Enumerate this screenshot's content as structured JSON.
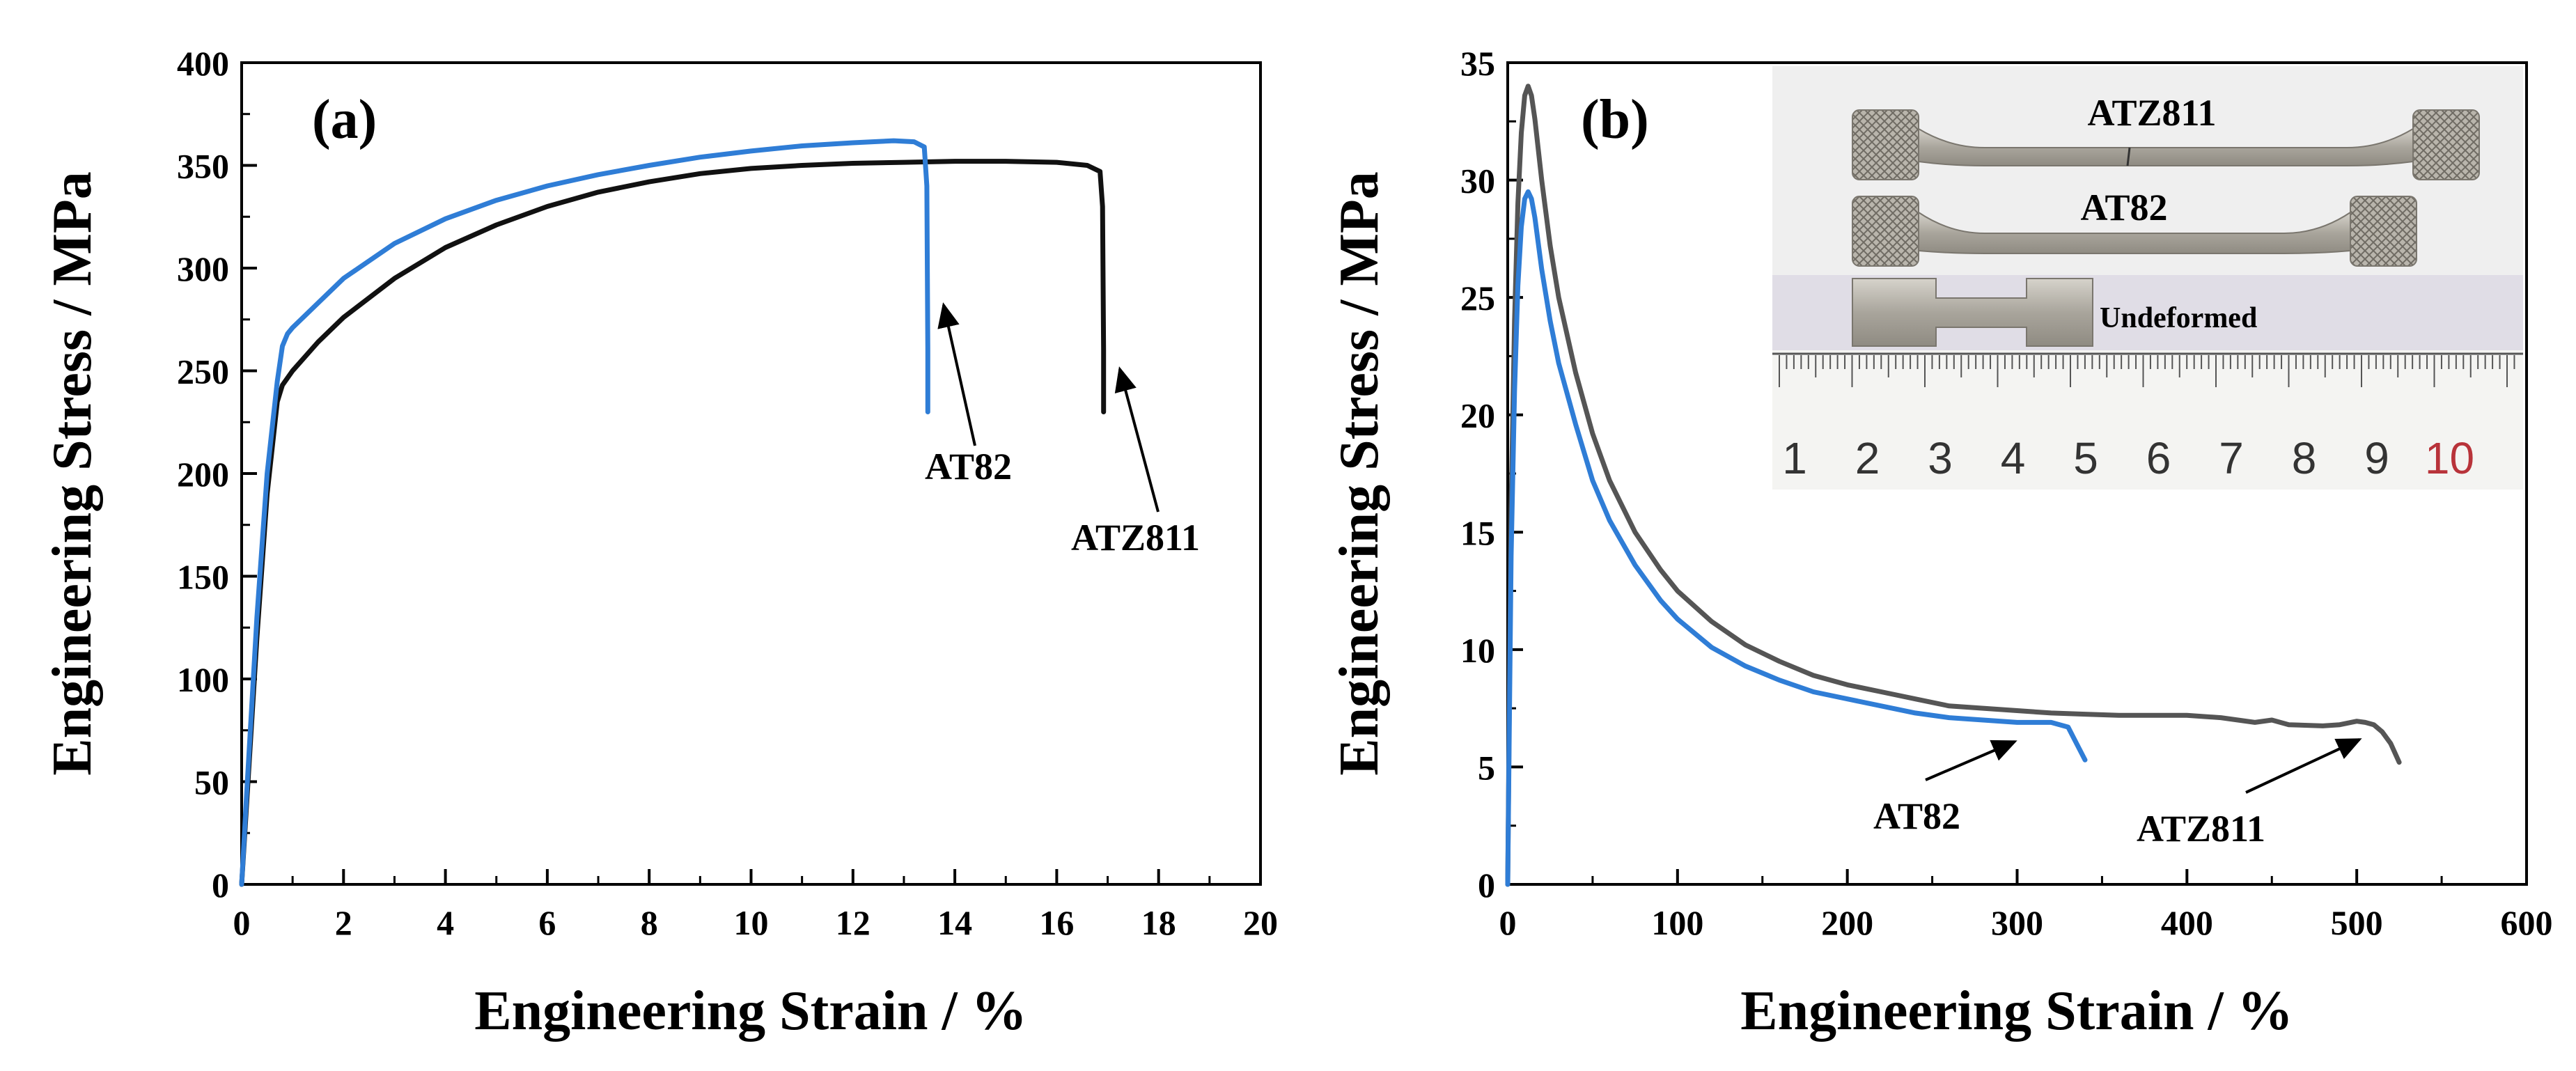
{
  "chart_data": [
    {
      "type": "line",
      "panel_label": "(a)",
      "xlabel": "Engineering Strain / %",
      "ylabel": "Engineering Stress / MPa",
      "xlim": [
        0,
        20
      ],
      "ylim": [
        0,
        400
      ],
      "xticks": [
        0,
        2,
        4,
        6,
        8,
        10,
        12,
        14,
        16,
        18,
        20
      ],
      "yticks": [
        0,
        50,
        100,
        150,
        200,
        250,
        300,
        350,
        400
      ],
      "grid": false,
      "series": [
        {
          "name": "ATZ811",
          "color": "#111111",
          "x": [
            0,
            0.1,
            0.3,
            0.5,
            0.7,
            0.8,
            1.0,
            1.5,
            2,
            3,
            4,
            5,
            6,
            7,
            8,
            9,
            10,
            11,
            12,
            13,
            14,
            15,
            16,
            16.6,
            16.85,
            16.9,
            16.92,
            16.92
          ],
          "y": [
            0,
            40,
            120,
            190,
            235,
            243,
            250,
            264,
            276,
            295,
            310,
            321,
            330,
            337,
            342,
            346,
            348.5,
            350,
            351,
            351.5,
            352,
            352,
            351.5,
            350,
            347,
            330,
            260,
            230
          ]
        },
        {
          "name": "AT82",
          "color": "#2f7dd6",
          "x": [
            0,
            0.1,
            0.3,
            0.5,
            0.7,
            0.8,
            0.9,
            1.0,
            1.5,
            2,
            3,
            4,
            5,
            6,
            7,
            8,
            9,
            10,
            11,
            12,
            12.8,
            13.2,
            13.4,
            13.45,
            13.47,
            13.47
          ],
          "y": [
            0,
            45,
            130,
            200,
            245,
            262,
            268,
            271,
            283,
            295,
            312,
            324,
            333,
            340,
            345.5,
            350,
            354,
            357,
            359.5,
            361,
            362,
            361.5,
            359,
            340,
            260,
            230
          ]
        }
      ],
      "annotations": [
        {
          "text": "AT82",
          "points_to": [
            13.5,
            285
          ]
        },
        {
          "text": "ATZ811",
          "points_to": [
            17.0,
            250
          ]
        }
      ]
    },
    {
      "type": "line",
      "panel_label": "(b)",
      "xlabel": "Engineering Strain / %",
      "ylabel": "Engineering Stress / MPa",
      "xlim": [
        0,
        600
      ],
      "ylim": [
        0,
        35
      ],
      "xticks": [
        0,
        100,
        200,
        300,
        400,
        500,
        600
      ],
      "yticks": [
        0,
        5,
        10,
        15,
        20,
        25,
        30,
        35
      ],
      "grid": false,
      "series": [
        {
          "name": "ATZ811",
          "color": "#555555",
          "x": [
            0,
            1,
            2,
            4,
            6,
            8,
            10,
            12,
            14,
            16,
            18,
            20,
            25,
            30,
            40,
            50,
            60,
            75,
            90,
            100,
            120,
            140,
            160,
            180,
            200,
            220,
            240,
            260,
            280,
            300,
            320,
            340,
            360,
            380,
            400,
            420,
            440,
            450,
            460,
            480,
            490,
            500,
            505,
            510,
            515,
            520,
            525
          ],
          "y": [
            0,
            8,
            16,
            24,
            29,
            32,
            33.6,
            34,
            33.6,
            32.6,
            31.3,
            30,
            27.2,
            25,
            21.8,
            19.2,
            17.2,
            15,
            13.4,
            12.5,
            11.2,
            10.2,
            9.5,
            8.9,
            8.5,
            8.2,
            7.9,
            7.6,
            7.5,
            7.4,
            7.3,
            7.25,
            7.2,
            7.2,
            7.2,
            7.1,
            6.9,
            7.0,
            6.8,
            6.75,
            6.8,
            6.95,
            6.9,
            6.8,
            6.5,
            6.0,
            5.2
          ]
        },
        {
          "name": "AT82",
          "color": "#2f7dd6",
          "x": [
            0,
            1,
            2,
            4,
            6,
            8,
            10,
            12,
            14,
            16,
            18,
            20,
            25,
            30,
            40,
            50,
            60,
            75,
            90,
            100,
            120,
            140,
            160,
            180,
            200,
            220,
            240,
            260,
            280,
            300,
            310,
            320,
            330,
            335,
            340
          ],
          "y": [
            0,
            7,
            14,
            21,
            25.5,
            28,
            29.2,
            29.5,
            29.2,
            28.4,
            27.3,
            26.2,
            24,
            22.2,
            19.6,
            17.2,
            15.5,
            13.6,
            12.1,
            11.3,
            10.1,
            9.3,
            8.7,
            8.2,
            7.9,
            7.6,
            7.3,
            7.1,
            7.0,
            6.9,
            6.9,
            6.9,
            6.7,
            6.0,
            5.3
          ]
        }
      ],
      "annotations": [
        {
          "text": "AT82",
          "points_to": [
            333,
            6.5
          ]
        },
        {
          "text": "ATZ811",
          "points_to": [
            510,
            6.3
          ]
        }
      ],
      "inset": {
        "labels": [
          "ATZ811",
          "AT82",
          "Undeformed"
        ],
        "ruler_numbers": [
          "1",
          "2",
          "3",
          "4",
          "5",
          "6",
          "7",
          "8",
          "9",
          "10"
        ]
      }
    }
  ]
}
